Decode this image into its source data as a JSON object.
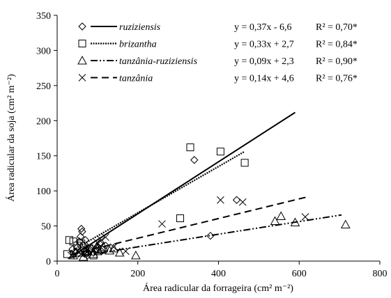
{
  "chart_data": {
    "type": "scatter",
    "xlabel": "Área radicular da forrageira (cm² m⁻²)",
    "ylabel": "Área radicular da soja (cm² m⁻²)",
    "xlim": [
      0,
      800
    ],
    "ylim": [
      0,
      350
    ],
    "xticks": [
      0,
      200,
      400,
      600,
      800
    ],
    "yticks": [
      0,
      50,
      100,
      150,
      200,
      250,
      300,
      350
    ],
    "xtick_labels": [
      "0",
      "200",
      "400",
      "600",
      "800"
    ],
    "ytick_labels": [
      "0",
      "50",
      "100",
      "150",
      "200",
      "250",
      "300",
      "350"
    ],
    "grid": false,
    "legend_position": "top-left",
    "series": [
      {
        "name": "ruziziensis",
        "marker": "diamond",
        "line_style": "solid",
        "equation": "y = 0,37x - 6,6",
        "r2": "R² = 0,70*",
        "fit": {
          "slope": 0.37,
          "intercept": -6.6,
          "x_range": [
            38,
            590
          ]
        },
        "points": [
          [
            38,
            17
          ],
          [
            45,
            12
          ],
          [
            50,
            20
          ],
          [
            55,
            28
          ],
          [
            58,
            35
          ],
          [
            60,
            46
          ],
          [
            62,
            42
          ],
          [
            65,
            22
          ],
          [
            68,
            15
          ],
          [
            70,
            30
          ],
          [
            72,
            10
          ],
          [
            75,
            8
          ],
          [
            80,
            14
          ],
          [
            85,
            18
          ],
          [
            90,
            12
          ],
          [
            95,
            16
          ],
          [
            100,
            20
          ],
          [
            105,
            25
          ],
          [
            110,
            14
          ],
          [
            120,
            22
          ],
          [
            340,
            144
          ],
          [
            380,
            36
          ],
          [
            445,
            87
          ]
        ]
      },
      {
        "name": "brizantha",
        "marker": "square",
        "line_style": "dotted",
        "equation": "y = 0,33x + 2,7",
        "r2": "R² = 0,84*",
        "fit": {
          "slope": 0.33,
          "intercept": 2.7,
          "x_range": [
            30,
            465
          ]
        },
        "points": [
          [
            25,
            10
          ],
          [
            30,
            30
          ],
          [
            40,
            28
          ],
          [
            50,
            22
          ],
          [
            60,
            25
          ],
          [
            70,
            12
          ],
          [
            80,
            18
          ],
          [
            90,
            8
          ],
          [
            100,
            14
          ],
          [
            110,
            16
          ],
          [
            305,
            61
          ],
          [
            330,
            162
          ],
          [
            405,
            156
          ],
          [
            465,
            140
          ]
        ]
      },
      {
        "name": "tanzânia-ruziziensis",
        "marker": "triangle",
        "line_style": "dashdotdot",
        "equation": "y = 0,09x + 2,3",
        "r2": "R² = 0,90*",
        "fit": {
          "slope": 0.09,
          "intercept": 2.3,
          "x_range": [
            30,
            705
          ]
        },
        "points": [
          [
            40,
            8
          ],
          [
            55,
            12
          ],
          [
            65,
            6
          ],
          [
            75,
            14
          ],
          [
            90,
            10
          ],
          [
            100,
            18
          ],
          [
            115,
            20
          ],
          [
            130,
            15
          ],
          [
            140,
            18
          ],
          [
            155,
            12
          ],
          [
            195,
            8
          ],
          [
            540,
            57
          ],
          [
            555,
            64
          ],
          [
            590,
            55
          ],
          [
            715,
            52
          ]
        ]
      },
      {
        "name": "tanzânia",
        "marker": "x",
        "line_style": "dashed",
        "equation": "y = 0,14x + 4,6",
        "r2": "R² = 0,76*",
        "fit": {
          "slope": 0.14,
          "intercept": 4.6,
          "x_range": [
            35,
            620
          ]
        },
        "points": [
          [
            35,
            8
          ],
          [
            50,
            14
          ],
          [
            60,
            10
          ],
          [
            70,
            18
          ],
          [
            80,
            22
          ],
          [
            90,
            16
          ],
          [
            100,
            26
          ],
          [
            110,
            30
          ],
          [
            120,
            34
          ],
          [
            140,
            20
          ],
          [
            170,
            14
          ],
          [
            260,
            53
          ],
          [
            405,
            87
          ],
          [
            460,
            84
          ],
          [
            615,
            63
          ]
        ]
      }
    ]
  }
}
